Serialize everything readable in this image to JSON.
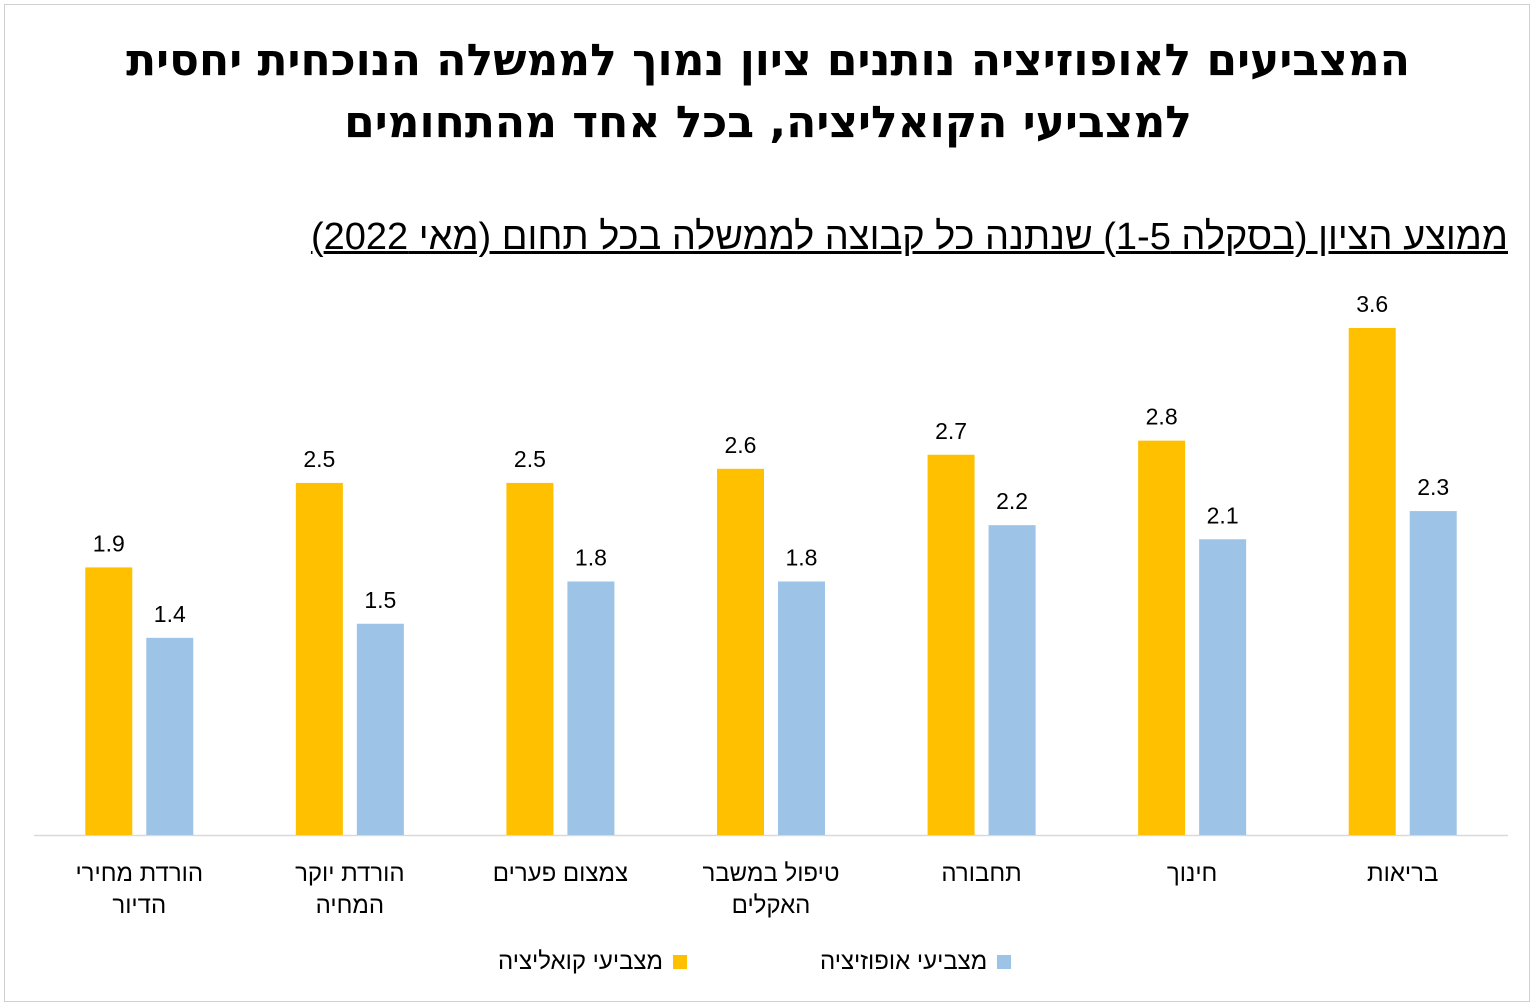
{
  "chart_data": {
    "type": "bar",
    "title": "המצביעים לאופוזיציה נותנים ציון נמוך לממשלה הנוכחית יחסית למצביעי הקואליציה, בכל אחד מהתחומים",
    "title_lines": [
      "המצביעים לאופוזיציה נותנים ציון נמוך לממשלה הנוכחית יחסית",
      "למצביעי הקואליציה, בכל אחד מהתחומים"
    ],
    "subtitle": "ממוצע הציון (בסקלה 1-5) שנתנה כל קבוצה לממשלה בכל תחום (מאי 2022)",
    "categories": [
      "בריאות",
      "חינוך",
      "תחבורה",
      "טיפול במשבר האקלים",
      "צמצום פערים",
      "הורדת יוקר המחיה",
      "הורדת מחירי הדיור"
    ],
    "category_lines": [
      [
        "בריאות"
      ],
      [
        "חינוך"
      ],
      [
        "תחבורה"
      ],
      [
        "טיפול במשבר",
        "האקלים"
      ],
      [
        "צמצום פערים"
      ],
      [
        "הורדת יוקר",
        "המחיה"
      ],
      [
        "הורדת מחירי",
        "הדיור"
      ]
    ],
    "series": [
      {
        "name": "מצביעי קואליציה",
        "color": "#FFC000",
        "values": [
          3.6,
          2.8,
          2.7,
          2.6,
          2.5,
          2.5,
          1.9
        ]
      },
      {
        "name": "מצביעי אופוזיציה",
        "color": "#9DC3E6",
        "values": [
          2.3,
          2.1,
          2.2,
          1.8,
          1.8,
          1.5,
          1.4
        ]
      }
    ],
    "ylim": [
      0,
      4
    ],
    "grid": false,
    "legend_position": "bottom",
    "direction": "rtl"
  }
}
